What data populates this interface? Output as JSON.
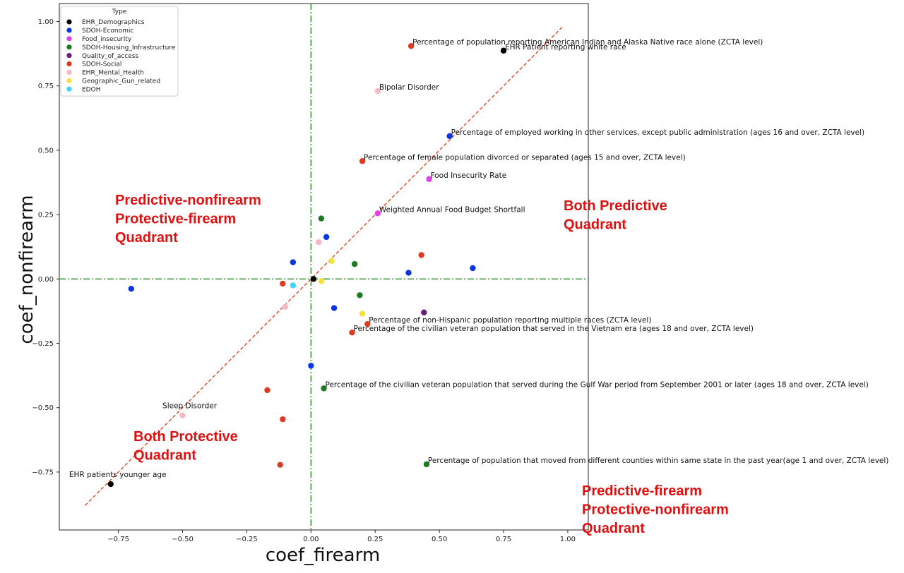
{
  "chart_data": {
    "type": "scatter",
    "xlabel": "coef_firearm",
    "ylabel": "coef_nonfirearm",
    "xlim": [
      -0.98,
      1.08
    ],
    "ylim": [
      -0.975,
      1.07
    ],
    "xticks": [
      -0.75,
      -0.5,
      -0.25,
      0.0,
      0.25,
      0.5,
      0.75,
      1.0
    ],
    "xtick_labels": [
      "−0.75",
      "−0.50",
      "−0.25",
      "0.00",
      "0.25",
      "0.50",
      "0.75",
      "1.00"
    ],
    "yticks": [
      -0.75,
      -0.5,
      -0.25,
      0.0,
      0.25,
      0.5,
      0.75,
      1.0
    ],
    "ytick_labels": [
      "−0.75",
      "−0.50",
      "−0.25",
      "0.00",
      "0.25",
      "0.50",
      "0.75",
      "1.00"
    ],
    "grid": false,
    "legend": {
      "title": "Type",
      "placement": "upper-left",
      "entries": [
        {
          "name": "EHR_Demographics",
          "color": "#000000"
        },
        {
          "name": "SDOH-Economic",
          "color": "#0a35e0"
        },
        {
          "name": "Food_insecurity",
          "color": "#e040e8"
        },
        {
          "name": "SDOH-Housing_Infrastructure",
          "color": "#1e7a1e"
        },
        {
          "name": "Quality_of_access",
          "color": "#6a1e7a"
        },
        {
          "name": "SDOH-Social",
          "color": "#de3a22"
        },
        {
          "name": "EHR_Mental_Health",
          "color": "#f4b8c2"
        },
        {
          "name": "Geographic_Gun_related",
          "color": "#f4e23a"
        },
        {
          "name": "EDOH",
          "color": "#42d4f4"
        }
      ]
    },
    "reference_lines": {
      "diagonal": {
        "x": [
          -0.88,
          0.98
        ],
        "y": [
          -0.88,
          0.98
        ],
        "color": "#de4a1e",
        "style": "dashed"
      },
      "vertical_zero": {
        "x": 0.0,
        "color": "#2a8a2a",
        "style": "dashdot"
      },
      "horizontal_zero": {
        "y": 0.0,
        "color": "#2a8a2a",
        "style": "dashdot"
      }
    },
    "points": [
      {
        "x": 0.39,
        "y": 0.905,
        "type": "SDOH-Social",
        "label": "Percentage of population reporting American Indian and Alaska Native race alone (ZCTA level)"
      },
      {
        "x": 0.75,
        "y": 0.887,
        "type": "EHR_Demographics",
        "label": "EHR Patient reporting white race"
      },
      {
        "x": 0.26,
        "y": 0.73,
        "type": "EHR_Mental_Health",
        "label": "Bipolar Disorder"
      },
      {
        "x": 0.54,
        "y": 0.555,
        "type": "SDOH-Economic",
        "label": "Percentage of employed working in other services, except public administration (ages 16 and over, ZCTA level)"
      },
      {
        "x": 0.2,
        "y": 0.458,
        "type": "SDOH-Social",
        "label": "Percentage of female population divorced or separated (ages 15 and over, ZCTA level)"
      },
      {
        "x": 0.46,
        "y": 0.388,
        "type": "Food_insecurity",
        "label": "Food Insecurity Rate"
      },
      {
        "x": 0.26,
        "y": 0.255,
        "type": "Food_insecurity",
        "label": "Weighted Annual Food Budget Shortfall"
      },
      {
        "x": 0.04,
        "y": 0.235,
        "type": "SDOH-Housing_Infrastructure",
        "label": ""
      },
      {
        "x": 0.06,
        "y": 0.163,
        "type": "SDOH-Economic",
        "label": ""
      },
      {
        "x": 0.03,
        "y": 0.143,
        "type": "EHR_Mental_Health",
        "label": ""
      },
      {
        "x": -0.07,
        "y": 0.065,
        "type": "SDOH-Economic",
        "label": ""
      },
      {
        "x": 0.08,
        "y": 0.07,
        "type": "Geographic_Gun_related",
        "label": ""
      },
      {
        "x": 0.17,
        "y": 0.058,
        "type": "SDOH-Housing_Infrastructure",
        "label": ""
      },
      {
        "x": 0.43,
        "y": 0.093,
        "type": "SDOH-Social",
        "label": ""
      },
      {
        "x": 0.63,
        "y": 0.042,
        "type": "SDOH-Economic",
        "label": ""
      },
      {
        "x": 0.38,
        "y": 0.024,
        "type": "SDOH-Economic",
        "label": ""
      },
      {
        "x": 0.01,
        "y": 0.0,
        "type": "EHR_Demographics",
        "label": ""
      },
      {
        "x": 0.04,
        "y": -0.008,
        "type": "Geographic_Gun_related",
        "label": ""
      },
      {
        "x": -0.11,
        "y": -0.018,
        "type": "SDOH-Social",
        "label": ""
      },
      {
        "x": -0.07,
        "y": -0.025,
        "type": "EDOH",
        "label": ""
      },
      {
        "x": -0.1,
        "y": -0.108,
        "type": "EHR_Mental_Health",
        "label": ""
      },
      {
        "x": -0.7,
        "y": -0.038,
        "type": "SDOH-Economic",
        "label": ""
      },
      {
        "x": 0.19,
        "y": -0.063,
        "type": "SDOH-Housing_Infrastructure",
        "label": ""
      },
      {
        "x": 0.09,
        "y": -0.113,
        "type": "SDOH-Economic",
        "label": ""
      },
      {
        "x": 0.44,
        "y": -0.13,
        "type": "Quality_of_access",
        "label": ""
      },
      {
        "x": 0.2,
        "y": -0.135,
        "type": "Geographic_Gun_related",
        "label": ""
      },
      {
        "x": 0.22,
        "y": -0.175,
        "type": "SDOH-Social",
        "label": "Percentage of non-Hispanic population reporting multiple races (ZCTA level)"
      },
      {
        "x": 0.16,
        "y": -0.208,
        "type": "SDOH-Social",
        "label": "Percentage of the civilian veteran population that served in the Vietnam era (ages 18 and over, ZCTA level)"
      },
      {
        "x": 0.0,
        "y": -0.337,
        "type": "SDOH-Economic",
        "label": ""
      },
      {
        "x": 0.05,
        "y": -0.425,
        "type": "SDOH-Housing_Infrastructure",
        "label": "Percentage of the civilian veteran population that served during the Gulf War period from September 2001 or later (ages 18 and over, ZCTA level)"
      },
      {
        "x": -0.17,
        "y": -0.432,
        "type": "SDOH-Social",
        "label": ""
      },
      {
        "x": -0.5,
        "y": -0.53,
        "type": "EHR_Mental_Health",
        "label": "Sleep Disorder"
      },
      {
        "x": -0.11,
        "y": -0.545,
        "type": "SDOH-Social",
        "label": ""
      },
      {
        "x": -0.12,
        "y": -0.722,
        "type": "SDOH-Social",
        "label": ""
      },
      {
        "x": 0.45,
        "y": -0.72,
        "type": "SDOH-Housing_Infrastructure",
        "label": "Percentage of population that moved from different counties within same state in the past year(age 1 and over, ZCTA level)"
      },
      {
        "x": -0.78,
        "y": -0.797,
        "type": "EHR_Demographics",
        "label": "EHR patients younger age"
      }
    ],
    "annotations": [
      {
        "text": "Predictive-nonfirearm\nProtective-firearm\nQuadrant",
        "region": "upper-left",
        "color": "#e01010"
      },
      {
        "text": "Both Predictive\nQuadrant",
        "region": "upper-right",
        "color": "#e01010"
      },
      {
        "text": "Both Protective\nQuadrant",
        "region": "lower-left",
        "color": "#e01010"
      },
      {
        "text": "Predictive-firearm\nProtective-nonfirearm\nQuadrant",
        "region": "lower-right",
        "color": "#e01010"
      }
    ]
  }
}
